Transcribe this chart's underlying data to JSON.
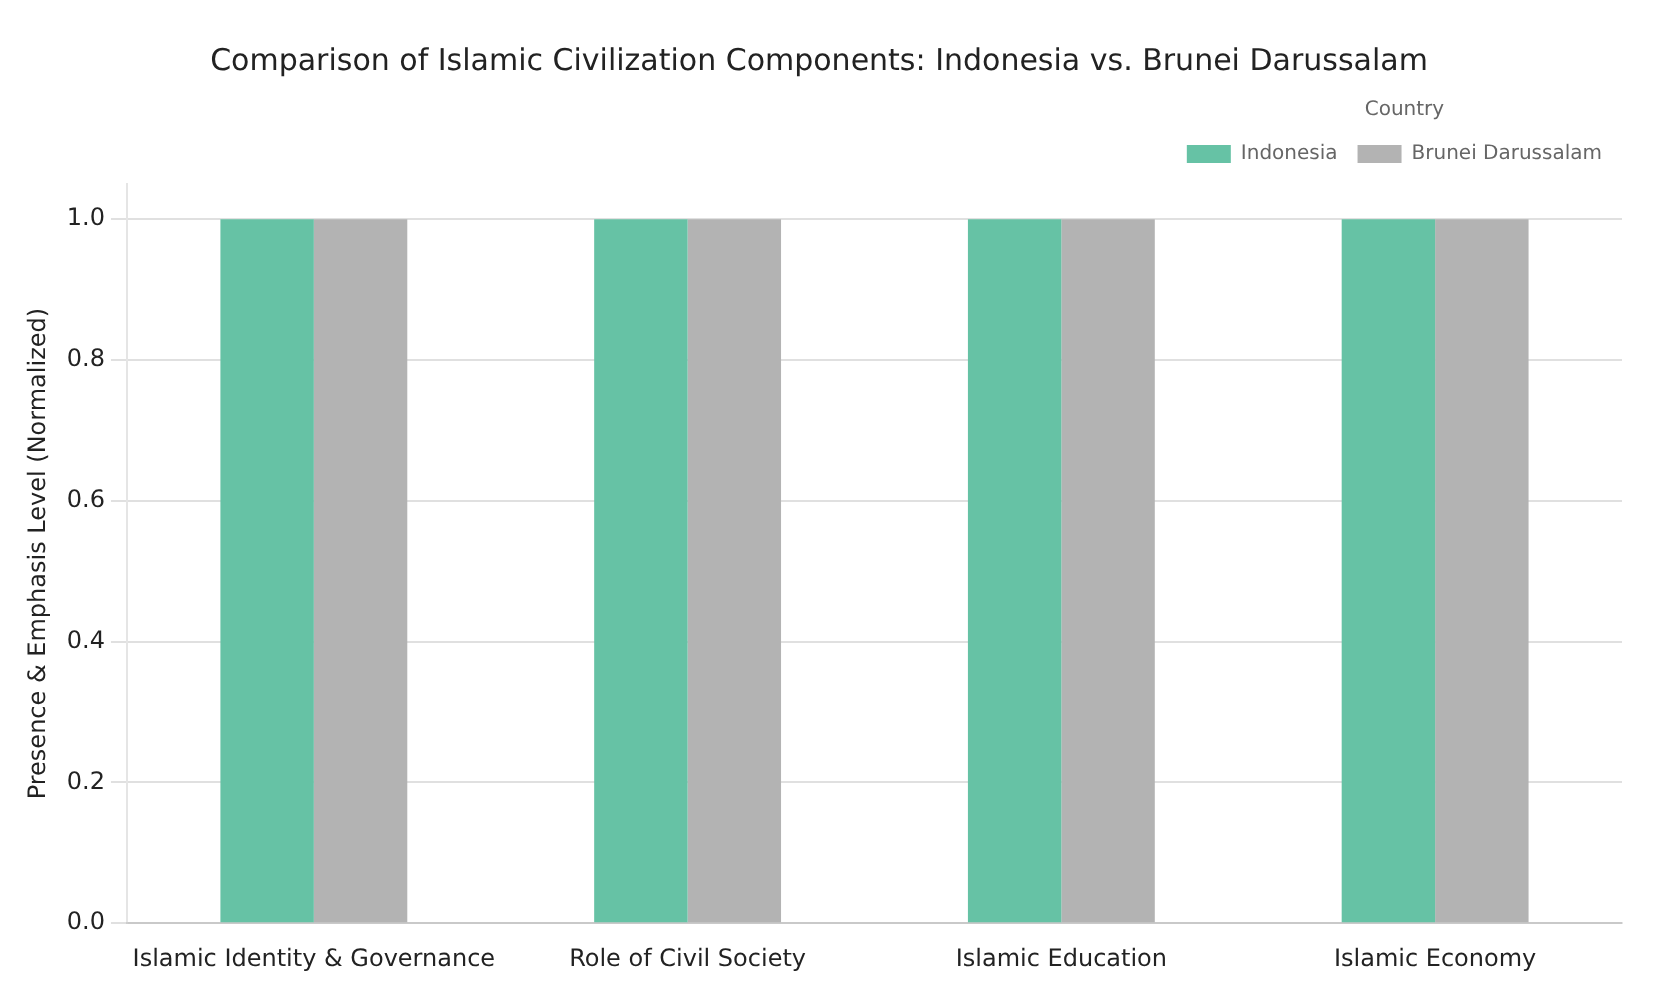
{
  "chart_data": {
    "type": "bar",
    "title": "Comparison of Islamic Civilization Components: Indonesia vs. Brunei Darussalam",
    "ylabel": "Presence & Emphasis Level (Normalized)",
    "legend_title": "Country",
    "categories": [
      "Islamic Identity & Governance",
      "Role of Civil Society",
      "Islamic Education",
      "Islamic Economy"
    ],
    "series": [
      {
        "name": "Indonesia",
        "color": "#66c2a5",
        "values": [
          1.0,
          1.0,
          1.0,
          1.0
        ]
      },
      {
        "name": "Brunei Darussalam",
        "color": "#b3b3b3",
        "values": [
          1.0,
          1.0,
          1.0,
          1.0
        ]
      }
    ],
    "ylim": [
      0,
      1.05
    ],
    "yticks": [
      {
        "value": 0,
        "label": "0.0"
      },
      {
        "value": 0.2,
        "label": "0.2"
      },
      {
        "value": 0.4,
        "label": "0.4"
      },
      {
        "value": 0.6,
        "label": "0.6"
      },
      {
        "value": 0.8,
        "label": "0.8"
      },
      {
        "value": 1,
        "label": "1.0"
      }
    ],
    "grid": "y",
    "legend": "top right"
  }
}
